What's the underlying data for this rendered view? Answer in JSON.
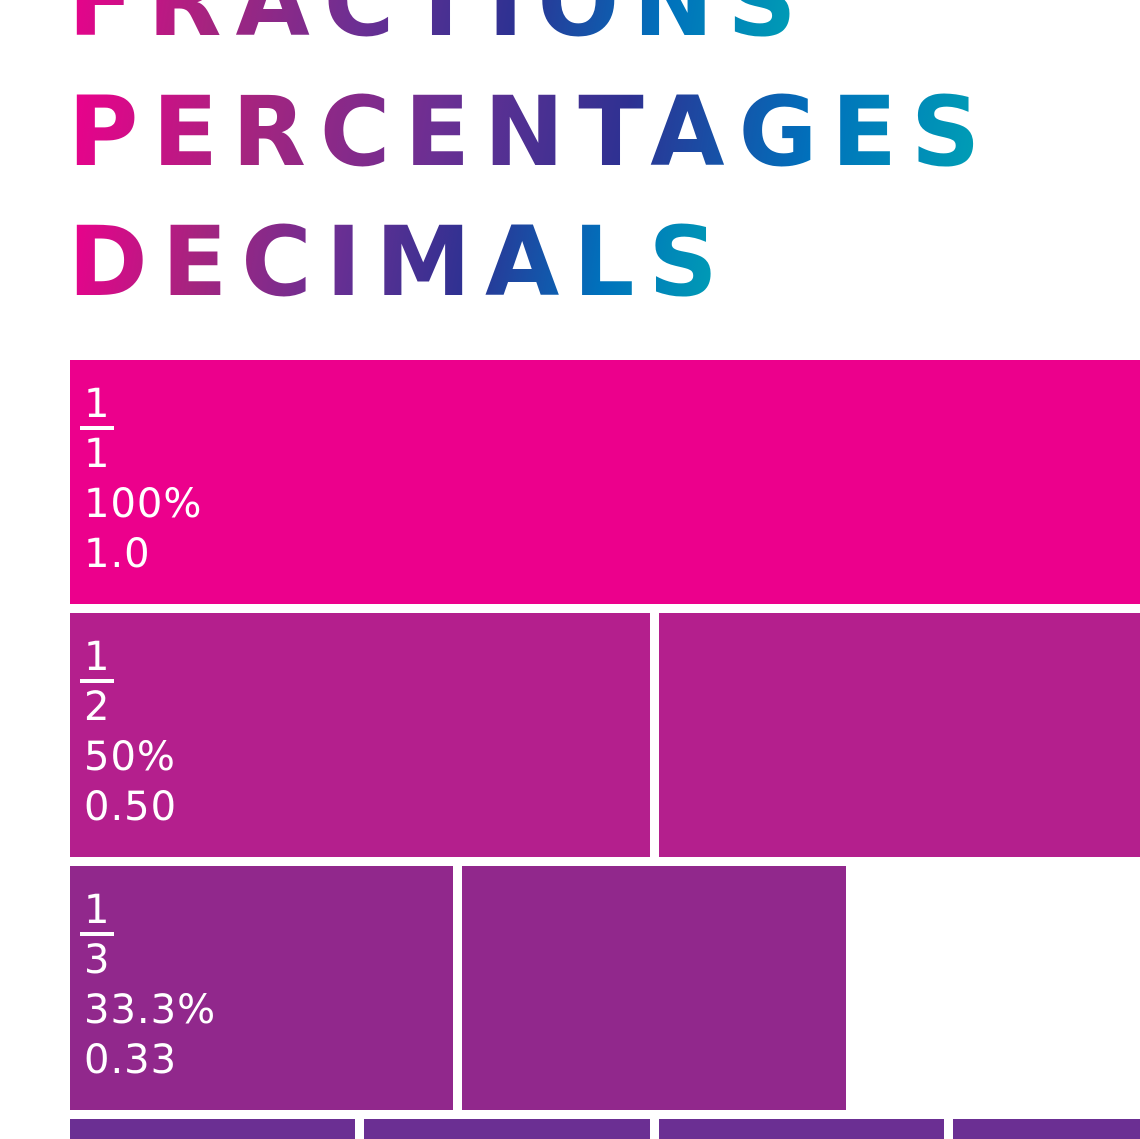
{
  "title": {
    "lines": [
      "FRACTIONS",
      "PERCENTAGES",
      "DECIMALS"
    ],
    "gradient": [
      "#ec008c",
      "#a5247f",
      "#6b2f93",
      "#2e3192",
      "#0071bc",
      "#00a3b4"
    ]
  },
  "rows": [
    {
      "denominator": 1,
      "color": "#ec008c",
      "label": {
        "numerator": "1",
        "denominator": "1",
        "percent": "100%",
        "decimal": "1.0"
      }
    },
    {
      "denominator": 2,
      "color": "#b41f8d",
      "label": {
        "numerator": "1",
        "denominator": "2",
        "percent": "50%",
        "decimal": "0.50"
      }
    },
    {
      "denominator": 3,
      "color": "#91288c",
      "label": {
        "numerator": "1",
        "denominator": "3",
        "percent": "33.3%",
        "decimal": "0.33"
      }
    },
    {
      "denominator": 4,
      "color": "#6b2f93",
      "label": null
    }
  ]
}
